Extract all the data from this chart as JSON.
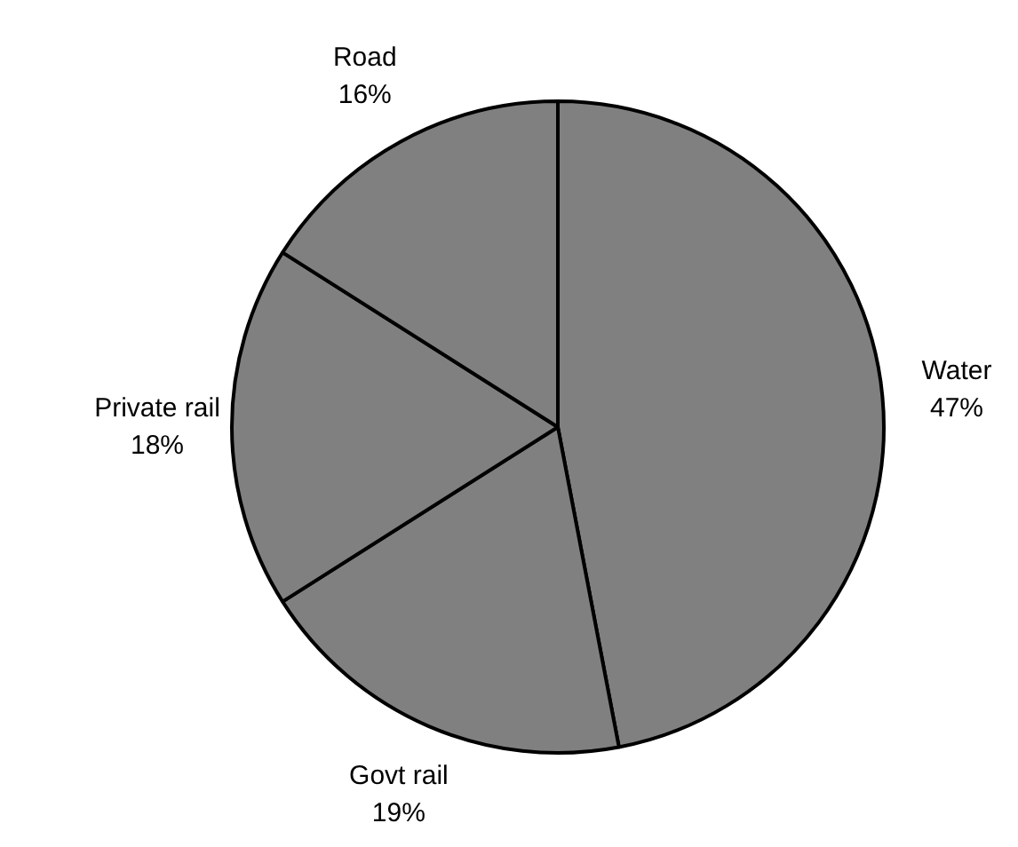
{
  "chart_data": {
    "type": "pie",
    "categories": [
      "Water",
      "Govt rail",
      "Private rail",
      "Road"
    ],
    "values": [
      47,
      19,
      18,
      16
    ],
    "value_labels": [
      "47%",
      "19%",
      "18%",
      "16%"
    ],
    "colors": [
      "#808080",
      "#808080",
      "#808080",
      "#808080"
    ],
    "legend": false
  }
}
